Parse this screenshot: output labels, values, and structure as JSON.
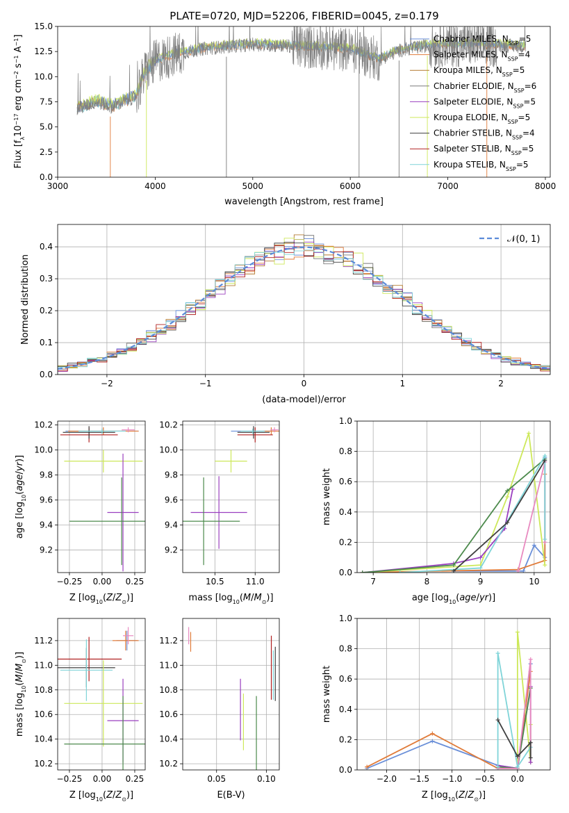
{
  "figure_title": "PLATE=0720, MJD=52206, FIBERID=0045, z=0.179",
  "colors": {
    "chabrier_miles": "#6a8fd8",
    "salpeter_miles": "#e07b39",
    "kroupa_miles": "#b3792e",
    "chabrier_elodie": "#7a7a7a",
    "salpeter_elodie": "#9a3fbf",
    "kroupa_elodie": "#cde85a",
    "chabrier_stelib": "#3f3f3f",
    "salpeter_stelib": "#b02020",
    "kroupa_stelib": "#7fd4d8",
    "green": "#4c8a4c",
    "pink": "#e88ac0",
    "gaussian": "#5b8bd9"
  },
  "chart_data": [
    {
      "id": "spectrum",
      "type": "line",
      "xlabel": "wavelength [Angstrom, rest frame]",
      "ylabel": "Flux [f_λ 10^-17 erg cm^-2 s^-1 A^-1]",
      "xlim": [
        3000,
        8050
      ],
      "ylim": [
        0,
        15
      ],
      "xticks": [
        "3000",
        "4000",
        "5000",
        "6000",
        "7000",
        "8000"
      ],
      "yticks": [
        "0.0",
        "2.5",
        "5.0",
        "7.5",
        "10.0",
        "12.5",
        "15.0"
      ],
      "legend_position": "right",
      "series": [
        {
          "name": "Chabrier MILES",
          "nssp": "5"
        },
        {
          "name": "Salpeter MILES",
          "nssp": "4"
        },
        {
          "name": "Kroupa MILES",
          "nssp": "5"
        },
        {
          "name": "Chabrier ELODIE",
          "nssp": "6"
        },
        {
          "name": "Salpeter ELODIE",
          "nssp": "5"
        },
        {
          "name": "Kroupa ELODIE",
          "nssp": "5"
        },
        {
          "name": "Chabrier STELIB",
          "nssp": "4"
        },
        {
          "name": "Salpeter STELIB",
          "nssp": "5"
        },
        {
          "name": "Kroupa STELIB",
          "nssp": "5"
        }
      ],
      "continuum": {
        "x": [
          3200,
          3400,
          3550,
          3700,
          3800,
          3900,
          4000,
          4200,
          4500,
          5000,
          5500,
          6000,
          6300,
          6500,
          6800,
          7200,
          7600,
          7800
        ],
        "y": [
          6.8,
          7.5,
          7.0,
          7.6,
          8.0,
          10.5,
          11.5,
          12.2,
          12.8,
          13.2,
          13.0,
          12.7,
          11.7,
          12.6,
          13.1,
          13.2,
          13.1,
          13.0
        ]
      },
      "observed_range": [
        3200,
        7800
      ]
    },
    {
      "id": "residuals",
      "type": "line",
      "xlabel": "(data-model)/error",
      "ylabel": "Normed distribution",
      "xlim": [
        -2.5,
        2.5
      ],
      "ylim": [
        0,
        0.47
      ],
      "xticks": [
        "−2",
        "−1",
        "0",
        "1",
        "2"
      ],
      "yticks": [
        "0.0",
        "0.1",
        "0.2",
        "0.3",
        "0.4"
      ],
      "grid": true,
      "legend_position": "top-right",
      "gaussian_label": "𝒩(0, 1)",
      "bins": {
        "start": -2.5,
        "width": 0.1,
        "count": 50
      }
    },
    {
      "id": "z-age",
      "type": "scatter",
      "xlabel": "Z [log10(Z/Z⊙)]",
      "ylabel": "age [log10(age/yr)]",
      "xlim": [
        -0.34,
        0.33
      ],
      "ylim": [
        9.02,
        10.23
      ],
      "xticks": [
        "−0.25",
        "0.00",
        "0.25"
      ],
      "yticks": [
        "9.2",
        "9.4",
        "9.6",
        "9.8",
        "10.0",
        "10.2"
      ],
      "grid": true,
      "points": [
        {
          "x": 0.0,
          "y": 10.15,
          "xerr": 0.28,
          "yerr": 0.02,
          "c": "chabrier_miles"
        },
        {
          "x": 0.01,
          "y": 10.15,
          "xerr": 0.27,
          "yerr": 0.03,
          "c": "salpeter_miles"
        },
        {
          "x": 0.2,
          "y": 10.16,
          "xerr": 0.05,
          "yerr": 0.02,
          "c": "pink"
        },
        {
          "x": -0.1,
          "y": 10.12,
          "xerr": 0.22,
          "yerr": 0.06,
          "c": "salpeter_stelib"
        },
        {
          "x": -0.1,
          "y": 10.14,
          "xerr": 0.2,
          "yerr": 0.05,
          "c": "chabrier_stelib"
        },
        {
          "x": 0.0,
          "y": 10.15,
          "xerr": 0.18,
          "yerr": 0.02,
          "c": "kroupa_stelib"
        },
        {
          "x": 0.01,
          "y": 9.91,
          "xerr": 0.3,
          "yerr": 0.09,
          "c": "kroupa_elodie"
        },
        {
          "x": 0.16,
          "y": 9.5,
          "xerr": 0.12,
          "yerr": 0.47,
          "c": "salpeter_elodie"
        },
        {
          "x": 0.15,
          "y": 9.43,
          "xerr": 0.4,
          "yerr": 0.35,
          "c": "green"
        }
      ]
    },
    {
      "id": "mass-age",
      "type": "scatter",
      "xlabel": "mass [log10(M/M⊙)]",
      "ylabel": "",
      "xlim": [
        10.1,
        11.3
      ],
      "ylim": [
        9.02,
        10.23
      ],
      "xticks": [
        "10.5",
        "11.0"
      ],
      "yticks": [
        "9.2",
        "9.4",
        "9.6",
        "9.8",
        "10.0",
        "10.2"
      ],
      "grid": true,
      "points": [
        {
          "x": 10.98,
          "y": 10.15,
          "xerr": 0.28,
          "yerr": 0.02,
          "c": "chabrier_miles"
        },
        {
          "x": 11.2,
          "y": 10.15,
          "xerr": 0.1,
          "yerr": 0.03,
          "c": "salpeter_miles"
        },
        {
          "x": 11.24,
          "y": 10.16,
          "xerr": 0.05,
          "yerr": 0.02,
          "c": "pink"
        },
        {
          "x": 11.0,
          "y": 10.12,
          "xerr": 0.22,
          "yerr": 0.06,
          "c": "salpeter_stelib"
        },
        {
          "x": 10.98,
          "y": 10.14,
          "xerr": 0.2,
          "yerr": 0.05,
          "c": "chabrier_stelib"
        },
        {
          "x": 10.97,
          "y": 10.15,
          "xerr": 0.15,
          "yerr": 0.02,
          "c": "kroupa_stelib"
        },
        {
          "x": 10.7,
          "y": 9.91,
          "xerr": 0.2,
          "yerr": 0.09,
          "c": "kroupa_elodie"
        },
        {
          "x": 10.55,
          "y": 9.5,
          "xerr": 0.35,
          "yerr": 0.29,
          "c": "salpeter_elodie"
        },
        {
          "x": 10.36,
          "y": 9.43,
          "xerr": 0.45,
          "yerr": 0.35,
          "c": "green"
        }
      ]
    },
    {
      "id": "age-weight",
      "type": "line",
      "xlabel": "age [log10(age/yr)]",
      "ylabel": "mass weight",
      "xlim": [
        6.7,
        10.3
      ],
      "ylim": [
        0,
        1.0
      ],
      "xticks": [
        "7",
        "8",
        "9",
        "10"
      ],
      "yticks": [
        "0.0",
        "0.2",
        "0.4",
        "0.6",
        "0.8",
        "1.0"
      ],
      "grid": true,
      "series": [
        {
          "c": "chabrier_miles",
          "x": [
            8.5,
            9.8,
            10.0,
            10.2,
            10.2
          ],
          "y": [
            0.01,
            0.01,
            0.18,
            0.1,
            0.76
          ]
        },
        {
          "c": "salpeter_miles",
          "x": [
            6.8,
            9.7,
            10.2,
            10.2
          ],
          "y": [
            0.0,
            0.02,
            0.08,
            0.65
          ]
        },
        {
          "c": "kroupa_elodie",
          "x": [
            6.8,
            9.0,
            9.5,
            9.9,
            10.2
          ],
          "y": [
            0.0,
            0.05,
            0.5,
            0.92,
            0.05
          ]
        },
        {
          "c": "salpeter_elodie",
          "x": [
            6.8,
            8.5,
            9.0,
            9.45,
            9.6
          ],
          "y": [
            0.0,
            0.06,
            0.1,
            0.29,
            0.55
          ]
        },
        {
          "c": "green",
          "x": [
            6.8,
            8.5,
            9.5,
            10.2
          ],
          "y": [
            0.0,
            0.05,
            0.54,
            0.75
          ]
        },
        {
          "c": "pink",
          "x": [
            9.7,
            10.2,
            10.2
          ],
          "y": [
            0.01,
            0.73,
            0.2
          ]
        },
        {
          "c": "kroupa_stelib",
          "x": [
            7.5,
            9.0,
            10.2,
            10.2
          ],
          "y": [
            0.0,
            0.03,
            0.77,
            0.22
          ]
        },
        {
          "c": "chabrier_stelib",
          "x": [
            8.5,
            9.5,
            10.2
          ],
          "y": [
            0.01,
            0.33,
            0.74
          ]
        }
      ]
    },
    {
      "id": "z-mass",
      "type": "scatter",
      "xlabel": "Z [log10(Z/Z⊙)]",
      "ylabel": "mass [log10(M/M⊙)]",
      "xlim": [
        -0.34,
        0.33
      ],
      "ylim": [
        10.15,
        11.38
      ],
      "xticks": [
        "−0.25",
        "0.00",
        "0.25"
      ],
      "yticks": [
        "10.2",
        "10.4",
        "10.6",
        "10.8",
        "11.0",
        "11.2"
      ],
      "grid": true,
      "points": [
        {
          "x": 0.19,
          "y": 11.2,
          "xerr": 0.08,
          "yerr": 0.08,
          "c": "chabrier_miles"
        },
        {
          "x": 0.18,
          "y": 11.2,
          "xerr": 0.1,
          "yerr": 0.08,
          "c": "salpeter_miles"
        },
        {
          "x": 0.2,
          "y": 11.24,
          "xerr": 0.04,
          "yerr": 0.07,
          "c": "pink"
        },
        {
          "x": -0.1,
          "y": 11.05,
          "xerr": 0.25,
          "yerr": 0.18,
          "c": "salpeter_stelib"
        },
        {
          "x": -0.12,
          "y": 10.98,
          "xerr": 0.22,
          "yerr": 0.16,
          "c": "chabrier_stelib"
        },
        {
          "x": -0.12,
          "y": 10.96,
          "xerr": 0.2,
          "yerr": 0.25,
          "c": "kroupa_stelib"
        },
        {
          "x": 0.01,
          "y": 10.69,
          "xerr": 0.3,
          "yerr": 0.35,
          "c": "kroupa_elodie"
        },
        {
          "x": 0.16,
          "y": 10.55,
          "xerr": 0.12,
          "yerr": 0.34,
          "c": "salpeter_elodie"
        },
        {
          "x": 0.16,
          "y": 10.36,
          "xerr": 0.45,
          "yerr": 0.39,
          "c": "green"
        }
      ]
    },
    {
      "id": "ebv-mass",
      "type": "scatter",
      "xlabel": "E(B-V)",
      "ylabel": "",
      "xlim": [
        0.016,
        0.113
      ],
      "ylim": [
        10.15,
        11.38
      ],
      "xticks": [
        "0.05",
        "0.10"
      ],
      "yticks": [
        "10.2",
        "10.4",
        "10.6",
        "10.8",
        "11.0",
        "11.2"
      ],
      "grid": true,
      "points": [
        {
          "x": 0.022,
          "y": 11.24,
          "yerr": 0.07,
          "c": "pink"
        },
        {
          "x": 0.024,
          "y": 11.19,
          "yerr": 0.08,
          "c": "salpeter_miles"
        },
        {
          "x": 0.074,
          "y": 10.64,
          "yerr": 0.25,
          "c": "salpeter_elodie"
        },
        {
          "x": 0.077,
          "y": 10.54,
          "yerr": 0.23,
          "c": "kroupa_elodie"
        },
        {
          "x": 0.09,
          "y": 10.45,
          "yerr": 0.3,
          "c": "green"
        },
        {
          "x": 0.105,
          "y": 10.98,
          "yerr": 0.26,
          "c": "salpeter_stelib"
        },
        {
          "x": 0.107,
          "y": 10.92,
          "yerr": 0.2,
          "c": "kroupa_stelib"
        },
        {
          "x": 0.109,
          "y": 10.93,
          "yerr": 0.22,
          "c": "chabrier_stelib"
        }
      ]
    },
    {
      "id": "z-weight",
      "type": "line",
      "xlabel": "Z [log10(Z/Z⊙)]",
      "ylabel": "mass weight",
      "xlim": [
        -2.45,
        0.5
      ],
      "ylim": [
        0,
        1.0
      ],
      "xticks": [
        "−2.0",
        "−1.5",
        "−1.0",
        "−0.5",
        "0.0"
      ],
      "yticks": [
        "0.0",
        "0.2",
        "0.4",
        "0.6",
        "0.8",
        "1.0"
      ],
      "grid": true,
      "series": [
        {
          "c": "chabrier_miles",
          "x": [
            -2.3,
            -1.3,
            -0.3,
            0.0,
            0.2
          ],
          "y": [
            0.01,
            0.19,
            0.03,
            0.01,
            0.7
          ]
        },
        {
          "c": "salpeter_miles",
          "x": [
            -2.3,
            -1.3,
            -0.3,
            0.0,
            0.2
          ],
          "y": [
            0.02,
            0.24,
            0.01,
            0.01,
            0.65
          ]
        },
        {
          "c": "kroupa_elodie",
          "x": [
            0.0,
            0.0,
            0.2,
            0.2
          ],
          "y": [
            0.01,
            0.91,
            0.05,
            0.3
          ]
        },
        {
          "c": "salpeter_elodie",
          "x": [
            -0.3,
            0.0,
            0.2,
            0.2
          ],
          "y": [
            0.03,
            0.01,
            0.55,
            0.05
          ]
        },
        {
          "c": "green",
          "x": [
            -0.3,
            0.0,
            0.2
          ],
          "y": [
            0.02,
            0.01,
            0.54
          ]
        },
        {
          "c": "pink",
          "x": [
            -0.3,
            0.0,
            0.2,
            0.2
          ],
          "y": [
            0.01,
            0.01,
            0.73,
            0.15
          ]
        },
        {
          "c": "kroupa_stelib",
          "x": [
            -0.3,
            -0.3,
            0.0,
            0.2
          ],
          "y": [
            0.02,
            0.77,
            0.02,
            0.15
          ]
        },
        {
          "c": "chabrier_stelib",
          "x": [
            -0.3,
            0.0,
            0.2,
            0.2
          ],
          "y": [
            0.33,
            0.09,
            0.18,
            0.08
          ]
        }
      ]
    }
  ]
}
